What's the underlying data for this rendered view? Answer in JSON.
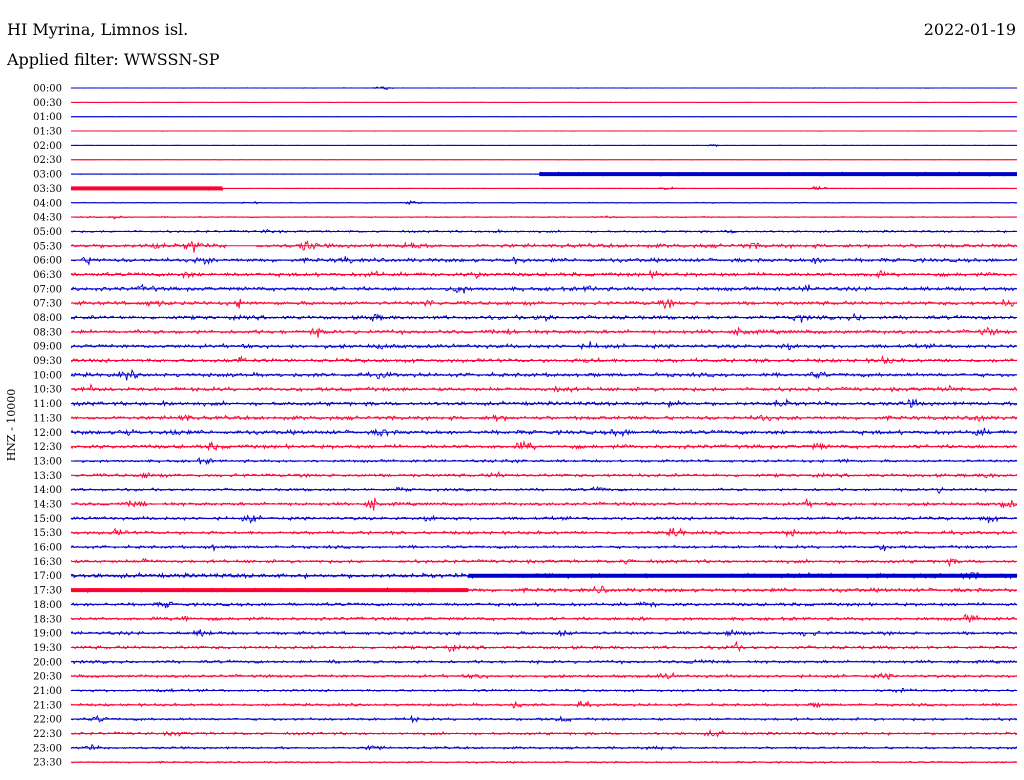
{
  "header": {
    "station": "HI Myrina, Limnos isl.",
    "date": "2022-01-19",
    "filter": "Applied filter: WWSSN-SP"
  },
  "chart_data": {
    "type": "line",
    "title": "HI Myrina, Limnos isl.",
    "ylabel": "HNZ - 10000",
    "colors": {
      "even": "#0000cc",
      "odd": "#ff0033"
    },
    "rows": [
      {
        "label": "00:00",
        "amp": 0.3,
        "bursts": [
          [
            0.33,
            2.5
          ]
        ]
      },
      {
        "label": "00:30",
        "amp": 0.2,
        "bursts": []
      },
      {
        "label": "01:00",
        "amp": 0.2,
        "bursts": []
      },
      {
        "label": "01:30",
        "amp": 0.2,
        "bursts": []
      },
      {
        "label": "02:00",
        "amp": 0.2,
        "bursts": [
          [
            0.68,
            1.5
          ]
        ]
      },
      {
        "label": "02:30",
        "amp": 0.2,
        "bursts": []
      },
      {
        "label": "03:00",
        "amp": 0.3,
        "thickStart": 0.495,
        "thickEnd": 1.0,
        "bursts": []
      },
      {
        "label": "03:30",
        "amp": 0.3,
        "thickStart": 0.0,
        "thickEnd": 0.16,
        "bursts": [
          [
            0.63,
            2.5
          ],
          [
            0.79,
            3.5
          ]
        ]
      },
      {
        "label": "04:00",
        "amp": 0.6,
        "bursts": [
          [
            0.36,
            2.5
          ],
          [
            0.19,
            1.5
          ]
        ]
      },
      {
        "label": "04:30",
        "amp": 0.8,
        "bursts": [
          [
            0.05,
            2.5
          ],
          [
            0.57,
            1.8
          ]
        ]
      },
      {
        "label": "05:00",
        "amp": 1.4,
        "bursts": [
          [
            0.21,
            2.5
          ],
          [
            0.45,
            2.5
          ],
          [
            0.7,
            2.0
          ]
        ]
      },
      {
        "label": "05:30",
        "amp": 2.6,
        "gap": [
          0.165,
          0.195
        ],
        "bursts": [
          [
            0.09,
            3.5
          ],
          [
            0.13,
            8
          ],
          [
            0.25,
            7
          ],
          [
            0.36,
            6
          ],
          [
            0.72,
            3
          ]
        ]
      },
      {
        "label": "06:00",
        "amp": 2.6,
        "bursts": [
          [
            0.02,
            4
          ],
          [
            0.14,
            4
          ],
          [
            0.29,
            3.5
          ],
          [
            0.47,
            4
          ],
          [
            0.79,
            4
          ]
        ]
      },
      {
        "label": "06:30",
        "amp": 2.6,
        "bursts": [
          [
            0.12,
            4
          ],
          [
            0.32,
            3.5
          ],
          [
            0.43,
            4
          ],
          [
            0.62,
            4
          ],
          [
            0.85,
            4
          ]
        ]
      },
      {
        "label": "07:00",
        "amp": 2.6,
        "bursts": [
          [
            0.08,
            4
          ],
          [
            0.41,
            6
          ],
          [
            0.55,
            3.5
          ],
          [
            0.78,
            3.5
          ]
        ]
      },
      {
        "label": "07:30",
        "amp": 2.6,
        "bursts": [
          [
            0.09,
            4
          ],
          [
            0.18,
            5
          ],
          [
            0.38,
            4
          ],
          [
            0.63,
            4
          ],
          [
            0.99,
            4
          ]
        ]
      },
      {
        "label": "08:00",
        "amp": 2.6,
        "bursts": [
          [
            0.32,
            4
          ],
          [
            0.5,
            4
          ],
          [
            0.77,
            4
          ],
          [
            0.83,
            4
          ]
        ]
      },
      {
        "label": "08:30",
        "amp": 2.6,
        "bursts": [
          [
            0.26,
            4
          ],
          [
            0.47,
            4
          ],
          [
            0.71,
            5
          ],
          [
            0.97,
            4
          ]
        ]
      },
      {
        "label": "09:00",
        "amp": 2.6,
        "bursts": [
          [
            0.33,
            4
          ],
          [
            0.55,
            4
          ],
          [
            0.76,
            4
          ]
        ]
      },
      {
        "label": "09:30",
        "amp": 2.6,
        "bursts": [
          [
            0.18,
            4
          ],
          [
            0.55,
            4
          ],
          [
            0.86,
            4
          ]
        ]
      },
      {
        "label": "10:00",
        "amp": 2.6,
        "bursts": [
          [
            0.06,
            5
          ],
          [
            0.33,
            3.5
          ],
          [
            0.79,
            3.5
          ]
        ]
      },
      {
        "label": "10:30",
        "amp": 2.6,
        "bursts": [
          [
            0.02,
            3.5
          ],
          [
            0.52,
            5
          ],
          [
            0.93,
            4
          ]
        ]
      },
      {
        "label": "11:00",
        "amp": 2.6,
        "bursts": [
          [
            0.1,
            3.5
          ],
          [
            0.64,
            4
          ],
          [
            0.75,
            5
          ],
          [
            0.89,
            4
          ]
        ]
      },
      {
        "label": "11:30",
        "amp": 2.6,
        "bursts": [
          [
            0.12,
            4
          ],
          [
            0.45,
            4
          ],
          [
            0.73,
            4
          ],
          [
            0.96,
            4
          ]
        ]
      },
      {
        "label": "12:00",
        "amp": 2.8,
        "bursts": [
          [
            0.06,
            4
          ],
          [
            0.11,
            4
          ],
          [
            0.33,
            4
          ],
          [
            0.58,
            5
          ],
          [
            0.96,
            4
          ]
        ]
      },
      {
        "label": "12:30",
        "amp": 2.6,
        "bursts": [
          [
            0.15,
            4
          ],
          [
            0.48,
            6
          ],
          [
            0.79,
            4
          ]
        ]
      },
      {
        "label": "13:00",
        "amp": 1.8,
        "bursts": [
          [
            0.14,
            3.5
          ],
          [
            0.47,
            3
          ],
          [
            0.82,
            3
          ]
        ]
      },
      {
        "label": "13:30",
        "amp": 2.2,
        "bursts": [
          [
            0.08,
            3.5
          ],
          [
            0.45,
            3
          ],
          [
            0.97,
            3
          ]
        ]
      },
      {
        "label": "14:00",
        "amp": 1.8,
        "bursts": [
          [
            0.35,
            3
          ],
          [
            0.56,
            3
          ],
          [
            0.92,
            3.5
          ]
        ]
      },
      {
        "label": "14:30",
        "amp": 2.2,
        "bursts": [
          [
            0.07,
            4
          ],
          [
            0.32,
            7
          ],
          [
            0.78,
            3.5
          ],
          [
            0.99,
            5
          ]
        ]
      },
      {
        "label": "15:00",
        "amp": 2.2,
        "bursts": [
          [
            0.19,
            4.5
          ],
          [
            0.38,
            4.5
          ],
          [
            0.97,
            4
          ]
        ]
      },
      {
        "label": "15:30",
        "amp": 2.2,
        "bursts": [
          [
            0.05,
            4
          ],
          [
            0.64,
            6
          ],
          [
            0.76,
            4
          ]
        ]
      },
      {
        "label": "16:00",
        "amp": 2.0,
        "bursts": [
          [
            0.15,
            3
          ],
          [
            0.86,
            3.5
          ]
        ]
      },
      {
        "label": "16:30",
        "amp": 2.2,
        "bursts": [
          [
            0.08,
            3
          ],
          [
            0.59,
            3
          ],
          [
            0.93,
            3
          ]
        ]
      },
      {
        "label": "17:00",
        "amp": 3.0,
        "thickStart": 0.42,
        "thickEnd": 1.0,
        "bursts": [
          [
            0.95,
            4.5
          ]
        ]
      },
      {
        "label": "17:30",
        "amp": 2.6,
        "thickStart": 0.0,
        "thickEnd": 0.42,
        "bursts": [
          [
            0.56,
            3.5
          ]
        ]
      },
      {
        "label": "18:00",
        "amp": 2.2,
        "bursts": [
          [
            0.1,
            3.5
          ],
          [
            0.61,
            3.5
          ]
        ]
      },
      {
        "label": "18:30",
        "amp": 2.2,
        "bursts": [
          [
            0.12,
            4
          ],
          [
            0.6,
            4
          ],
          [
            0.95,
            5
          ]
        ]
      },
      {
        "label": "19:00",
        "amp": 2.2,
        "bursts": [
          [
            0.14,
            4
          ],
          [
            0.52,
            3.5
          ],
          [
            0.7,
            4.5
          ],
          [
            0.78,
            4
          ]
        ]
      },
      {
        "label": "19:30",
        "amp": 2.2,
        "bursts": [
          [
            0.4,
            3.5
          ],
          [
            0.7,
            5
          ]
        ]
      },
      {
        "label": "20:00",
        "amp": 2.0,
        "bursts": [
          [
            0.28,
            3
          ],
          [
            0.66,
            3
          ]
        ]
      },
      {
        "label": "20:30",
        "amp": 2.0,
        "bursts": [
          [
            0.43,
            3
          ],
          [
            0.63,
            4
          ],
          [
            0.86,
            3
          ]
        ]
      },
      {
        "label": "21:00",
        "amp": 1.6,
        "bursts": [
          [
            0.1,
            3
          ],
          [
            0.88,
            3.5
          ]
        ]
      },
      {
        "label": "21:30",
        "amp": 1.8,
        "bursts": [
          [
            0.47,
            4
          ],
          [
            0.54,
            3.5
          ],
          [
            0.79,
            3
          ]
        ]
      },
      {
        "label": "22:00",
        "amp": 1.8,
        "bursts": [
          [
            0.03,
            4
          ],
          [
            0.36,
            3
          ],
          [
            0.52,
            3
          ]
        ]
      },
      {
        "label": "22:30",
        "amp": 1.8,
        "bursts": [
          [
            0.11,
            3
          ],
          [
            0.68,
            4.5
          ]
        ]
      },
      {
        "label": "23:00",
        "amp": 1.6,
        "bursts": [
          [
            0.02,
            3
          ],
          [
            0.32,
            4
          ],
          [
            0.62,
            3
          ]
        ]
      },
      {
        "label": "23:30",
        "amp": 1.2,
        "bursts": []
      }
    ]
  }
}
